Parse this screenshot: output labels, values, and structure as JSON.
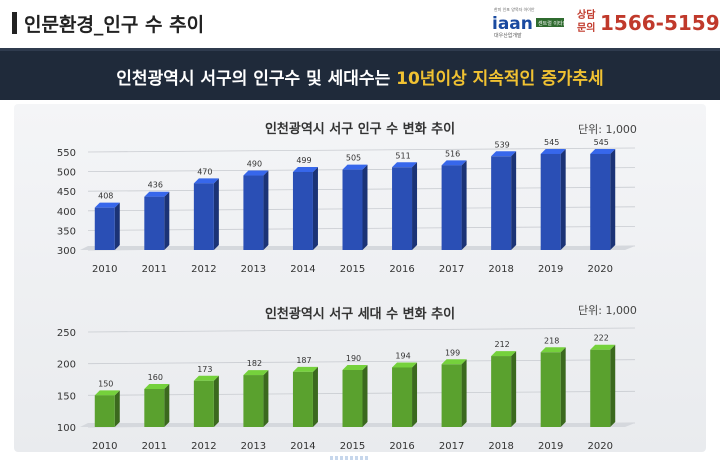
{
  "header": {
    "title": "인문환경_인구 수 추이",
    "logo_text": "iaan",
    "logo_tagline": "한미 인포 양목자 아이안",
    "logo_sub": "대우산업개발",
    "logo_badge": "센트럴 이타안",
    "contact_label": "상담문의",
    "phone": "1566-5159"
  },
  "banner": {
    "text_prefix": "인천광역시 서구의 인구수 및 세대수는 ",
    "text_highlight": "10년이상 지속적인 증가추세"
  },
  "chart_data": [
    {
      "type": "bar",
      "title": "인천광역시 서구 인구 수 변화 추이",
      "unit": "단위: 1,000",
      "categories": [
        "2010",
        "2011",
        "2012",
        "2013",
        "2014",
        "2015",
        "2016",
        "2017",
        "2018",
        "2019",
        "2020"
      ],
      "values": [
        408,
        436,
        470,
        490,
        499,
        505,
        511,
        516,
        539,
        545,
        545
      ],
      "ylim": [
        300,
        550
      ],
      "yticks": [
        300,
        350,
        400,
        450,
        500,
        550
      ],
      "grid": true,
      "color": "#2a4fb5"
    },
    {
      "type": "bar",
      "title": "인천광역시 서구 세대 수 변화 추이",
      "unit": "단위: 1,000",
      "categories": [
        "2010",
        "2011",
        "2012",
        "2013",
        "2014",
        "2015",
        "2016",
        "2017",
        "2018",
        "2019",
        "2020"
      ],
      "values": [
        150,
        160,
        173,
        182,
        187,
        190,
        194,
        199,
        212,
        218,
        222
      ],
      "ylim": [
        100,
        250
      ],
      "yticks": [
        100,
        150,
        200,
        250
      ],
      "grid": true,
      "color": "#5aa12e"
    }
  ]
}
